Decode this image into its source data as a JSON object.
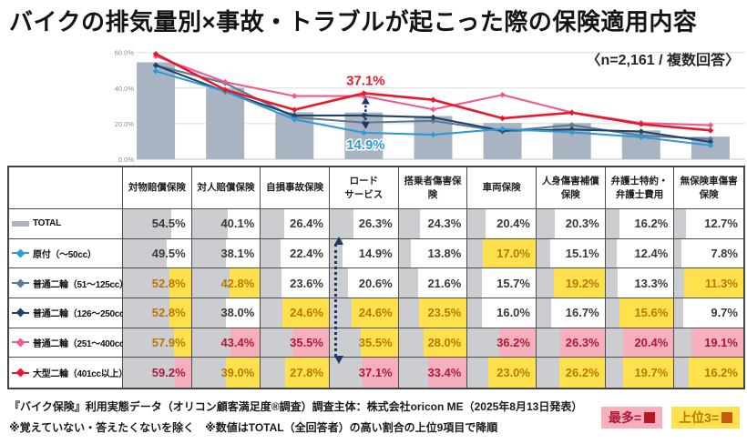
{
  "title": "バイクの排気量別×事故・トラブルが起こった際の保険適用内容",
  "sample_note": "〈n=2,161 / 複数回答〉",
  "colors": {
    "bar": "#a9b4c3",
    "grid": "#dcdcdc",
    "baseline": "#c3c3c3",
    "axis_label": "#8c8c8c",
    "databar": "#cbcdd0",
    "value_text": "#3a3a3a",
    "highlight_most_bg": "#f5afbd",
    "highlight_most_text": "#ae1a38",
    "highlight_top3_bg": "#ffe14d",
    "highlight_top3_text": "#b87800",
    "arrow": "#1f3864",
    "border": "#4d4d4d"
  },
  "chart_data": {
    "type": "bar+line combo",
    "categories": [
      "対物賠償保険",
      "対人賠償保険",
      "自損事故保険",
      "ロードサービス",
      "搭乗者傷害保険",
      "車両保険",
      "人身傷害補償保険",
      "弁護士特約・弁護士費用",
      "無保険車傷害保険"
    ],
    "ylim": [
      0,
      60
    ],
    "y_tick_values": [
      0,
      20,
      40,
      60
    ],
    "y_tick_labels": [
      "0.0%",
      "20.0%",
      "40.0%",
      "60.0%"
    ],
    "grid": "horizontal only",
    "series": [
      {
        "name": "TOTAL",
        "type": "bar",
        "color": "#a9b4c3",
        "values": [
          54.5,
          40.1,
          26.4,
          26.3,
          24.3,
          20.4,
          20.3,
          16.2,
          12.7
        ]
      },
      {
        "name": "原付（～50cc）",
        "type": "line",
        "color": "#2e9bd6",
        "values": [
          49.5,
          38.1,
          22.4,
          14.9,
          13.8,
          17.0,
          15.1,
          12.4,
          7.8
        ]
      },
      {
        "name": "普通二輪（51～125cc）",
        "type": "line",
        "color": "#5e7a94",
        "values": [
          52.8,
          42.8,
          23.6,
          20.6,
          21.6,
          15.7,
          19.2,
          13.3,
          11.3
        ]
      },
      {
        "name": "普通二輪（126～250cc）",
        "type": "line",
        "color": "#1f4467",
        "values": [
          52.8,
          38.0,
          24.6,
          24.6,
          23.5,
          16.0,
          16.7,
          15.6,
          9.7
        ]
      },
      {
        "name": "普通二輪（251～400cc）",
        "type": "line",
        "color": "#ee5a8c",
        "values": [
          57.9,
          43.4,
          35.5,
          35.5,
          28.0,
          36.2,
          26.3,
          20.4,
          19.1
        ]
      },
      {
        "name": "大型二輪（401cc以上）",
        "type": "line",
        "color": "#e8192c",
        "values": [
          59.2,
          39.0,
          27.8,
          37.1,
          33.4,
          23.0,
          26.2,
          19.7,
          16.2
        ]
      }
    ],
    "line_draw_order": [
      2,
      3,
      1,
      4,
      5
    ],
    "annotations": [
      {
        "text": "37.1%",
        "color": "#e8192c",
        "category_index": 3,
        "value": 37.1,
        "position": "above"
      },
      {
        "text": "14.9%",
        "color": "#2e9bd6",
        "category_index": 3,
        "value": 14.9,
        "position": "below"
      }
    ],
    "arrow": {
      "category_index": 3,
      "from": 37.1,
      "to": 14.9,
      "color": "#1f3864",
      "style": "dotted double-headed"
    }
  },
  "table": {
    "corner": "",
    "headers": [
      "対物賠償保険",
      "対人賠償保険",
      "自損事故保険",
      "ロード\nサービス",
      "搭乗者傷害保\n険",
      "車両保険",
      "人身傷害補償\n保険",
      "弁護士特約・\n弁護士費用",
      "無保険車傷害\n保険"
    ],
    "rows": [
      {
        "label": "TOTAL",
        "marker": "bar",
        "hl": [
          "",
          "",
          "",
          "",
          "",
          "",
          "",
          "",
          ""
        ]
      },
      {
        "label": "原付（～50cc）",
        "marker": "line",
        "hl": [
          "",
          "",
          "",
          "",
          "",
          "y",
          "",
          "",
          ""
        ]
      },
      {
        "label": "普通二輪（51～125cc）",
        "marker": "line",
        "hl": [
          "y",
          "y",
          "",
          "",
          "",
          "",
          "y",
          "",
          "y"
        ]
      },
      {
        "label": "普通二輪（126～250cc）",
        "marker": "line",
        "hl": [
          "y",
          "",
          "y",
          "y",
          "y",
          "",
          "",
          "y",
          ""
        ]
      },
      {
        "label": "普通二輪（251～400cc）",
        "marker": "line",
        "hl": [
          "y",
          "p",
          "p",
          "y",
          "y",
          "p",
          "p",
          "p",
          "p"
        ]
      },
      {
        "label": "大型二輪（401cc以上）",
        "marker": "line",
        "hl": [
          "p",
          "y",
          "y",
          "p",
          "p",
          "y",
          "y",
          "y",
          "y"
        ]
      }
    ],
    "databar_scale_max": 77
  },
  "footer": {
    "line1": "『バイク保険』利用実態データ（オリコン顧客満足度®調査）調査主体：株式会社oricon ME（2025年8月13日発表）",
    "line2": "※覚えていない・答えたくないを除く　※数値はTOTAL（全回答者）の高い割合の上位9項目で降順"
  },
  "legend": {
    "most_label": "最多=",
    "most_square": "#b51822",
    "top3_label": "上位3=",
    "top3_square": "#c55a11"
  }
}
